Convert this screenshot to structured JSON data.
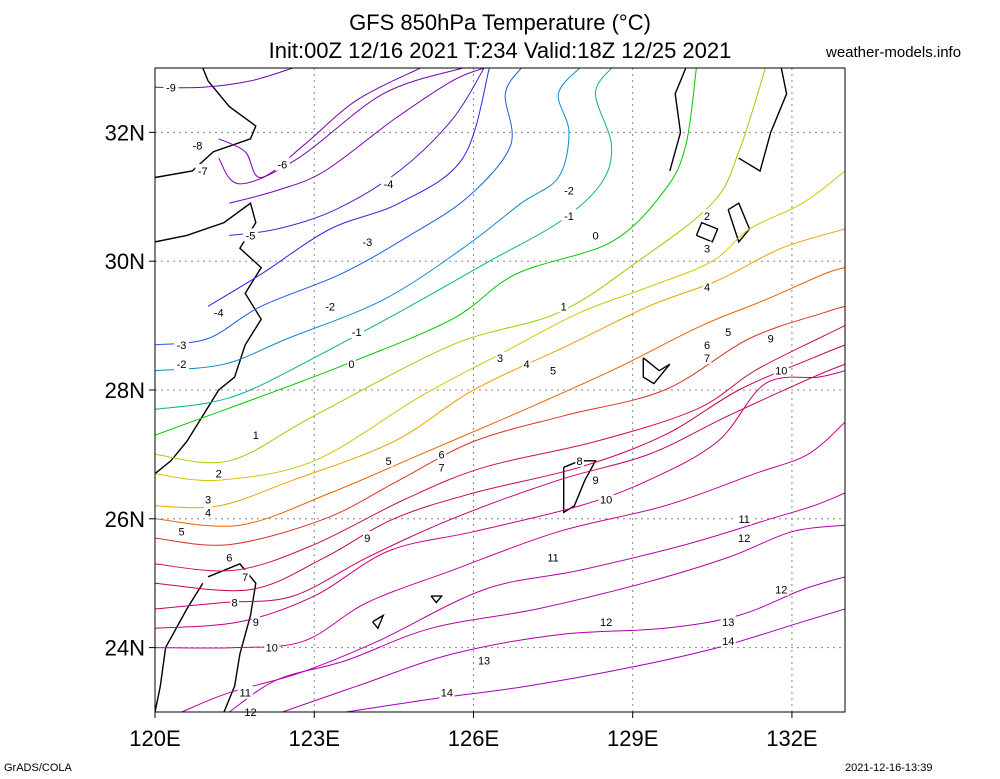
{
  "title_line1": "GFS 850hPa Temperature (°C)",
  "title_line2": "Init:00Z 12/16 2021 T:234 Valid:18Z 12/25 2021",
  "brand": "weather-models.info",
  "footer_left": "GrADS/COLA",
  "footer_right": "2021-12-16-13:39",
  "chart_data": {
    "type": "contour",
    "variable": "850hPa Temperature",
    "unit": "°C",
    "xlim": [
      120,
      133
    ],
    "ylim": [
      23,
      33
    ],
    "x_ticks": [
      120,
      123,
      126,
      129,
      132
    ],
    "x_tick_labels": [
      "120E",
      "123E",
      "126E",
      "129E",
      "132E"
    ],
    "y_ticks": [
      24,
      26,
      28,
      30,
      32
    ],
    "y_tick_labels": [
      "24N",
      "26N",
      "28N",
      "30N",
      "32N"
    ],
    "grid": true,
    "contour_interval": 1,
    "colors": {
      "-9": "#7a00b4",
      "-8": "#7a00b4",
      "-7": "#7a00b4",
      "-6": "#7a00b4",
      "-5": "#5a1ec8",
      "-4": "#2828e6",
      "-3": "#1e5ae6",
      "-2": "#0a8cd2",
      "-1": "#00b48c",
      "0": "#00c800",
      "1": "#96d200",
      "2": "#d2c800",
      "3": "#f0a000",
      "4": "#e66400",
      "5": "#dc3228",
      "6": "#d2143c",
      "7": "#c8005a",
      "8": "#c8006e",
      "9": "#c80082",
      "10": "#c80096",
      "11": "#be00a0",
      "12": "#b400aa",
      "13": "#aa00b4",
      "14": "#a000be"
    },
    "contours": [
      {
        "value": -9,
        "points": [
          [
            120.0,
            32.7
          ],
          [
            120.9,
            32.7
          ],
          [
            121.8,
            32.8
          ],
          [
            122.6,
            33.0
          ]
        ],
        "labels": [
          [
            120.3,
            32.7
          ]
        ]
      },
      {
        "value": -8,
        "points": [
          [
            121.2,
            31.9
          ],
          [
            121.7,
            31.7
          ],
          [
            122.0,
            31.3
          ],
          [
            122.8,
            31.8
          ],
          [
            123.8,
            32.5
          ],
          [
            125.0,
            33.0
          ]
        ],
        "labels": [
          [
            120.8,
            31.8
          ]
        ]
      },
      {
        "value": -7,
        "points": [
          [
            121.2,
            31.6
          ],
          [
            121.6,
            31.2
          ],
          [
            122.7,
            31.6
          ],
          [
            124.3,
            32.6
          ],
          [
            125.8,
            33.0
          ]
        ],
        "labels": [
          [
            120.9,
            31.4
          ]
        ]
      },
      {
        "value": -6,
        "points": [
          [
            121.4,
            30.9
          ],
          [
            122.3,
            31.1
          ],
          [
            123.2,
            31.4
          ],
          [
            124.5,
            32.2
          ],
          [
            125.6,
            32.8
          ],
          [
            126.2,
            33.0
          ]
        ],
        "labels": [
          [
            122.4,
            31.5
          ]
        ]
      },
      {
        "value": -5,
        "points": [
          [
            121.4,
            30.4
          ],
          [
            122.3,
            30.5
          ],
          [
            123.4,
            30.8
          ],
          [
            124.6,
            31.4
          ],
          [
            125.6,
            32.2
          ],
          [
            126.2,
            33.0
          ]
        ],
        "labels": [
          [
            121.8,
            30.4
          ]
        ]
      },
      {
        "value": -4,
        "points": [
          [
            121.0,
            29.3
          ],
          [
            122.0,
            29.8
          ],
          [
            123.3,
            30.5
          ],
          [
            124.6,
            30.9
          ],
          [
            125.8,
            31.6
          ],
          [
            126.3,
            33.0
          ]
        ],
        "labels": [
          [
            121.2,
            29.2
          ],
          [
            124.4,
            31.2
          ]
        ]
      },
      {
        "value": -3,
        "points": [
          [
            120.0,
            28.7
          ],
          [
            121.0,
            28.8
          ],
          [
            122.0,
            29.3
          ],
          [
            123.5,
            29.8
          ],
          [
            124.8,
            30.4
          ],
          [
            125.9,
            31.0
          ],
          [
            126.7,
            31.8
          ],
          [
            126.6,
            32.6
          ],
          [
            126.9,
            33.0
          ]
        ],
        "labels": [
          [
            120.5,
            28.7
          ],
          [
            124.0,
            30.3
          ]
        ]
      },
      {
        "value": -2,
        "points": [
          [
            120.0,
            28.3
          ],
          [
            121.3,
            28.4
          ],
          [
            122.5,
            28.8
          ],
          [
            124.3,
            29.4
          ],
          [
            125.8,
            30.2
          ],
          [
            126.9,
            30.9
          ],
          [
            127.6,
            31.3
          ],
          [
            127.8,
            32.0
          ],
          [
            127.6,
            32.6
          ],
          [
            128.0,
            33.0
          ]
        ],
        "labels": [
          [
            120.5,
            28.4
          ],
          [
            123.3,
            29.3
          ],
          [
            127.8,
            31.1
          ]
        ]
      },
      {
        "value": -1,
        "points": [
          [
            120.0,
            27.7
          ],
          [
            121.0,
            27.8
          ],
          [
            121.8,
            28.0
          ],
          [
            123.0,
            28.5
          ],
          [
            124.8,
            29.3
          ],
          [
            126.3,
            30.0
          ],
          [
            127.6,
            30.6
          ],
          [
            128.4,
            31.2
          ],
          [
            128.6,
            31.8
          ],
          [
            128.3,
            32.6
          ],
          [
            128.6,
            33.0
          ]
        ],
        "labels": [
          [
            123.8,
            28.9
          ],
          [
            127.8,
            30.7
          ]
        ]
      },
      {
        "value": 0,
        "points": [
          [
            120.0,
            27.3
          ],
          [
            121.0,
            27.6
          ],
          [
            122.0,
            27.9
          ],
          [
            123.6,
            28.4
          ],
          [
            125.6,
            29.1
          ],
          [
            126.8,
            29.8
          ],
          [
            128.6,
            30.3
          ],
          [
            129.6,
            31.1
          ],
          [
            130.0,
            31.8
          ],
          [
            130.2,
            33.0
          ]
        ],
        "labels": [
          [
            123.7,
            28.4
          ],
          [
            128.3,
            30.4
          ]
        ]
      },
      {
        "value": 1,
        "points": [
          [
            120.0,
            27.0
          ],
          [
            121.4,
            26.9
          ],
          [
            123.0,
            27.6
          ],
          [
            125.6,
            28.7
          ],
          [
            127.6,
            29.2
          ],
          [
            129.1,
            30.0
          ],
          [
            130.5,
            30.9
          ],
          [
            131.0,
            31.7
          ],
          [
            131.5,
            33.0
          ]
        ],
        "labels": [
          [
            121.9,
            27.3
          ],
          [
            127.7,
            29.3
          ]
        ]
      },
      {
        "value": 2,
        "points": [
          [
            120.0,
            26.7
          ],
          [
            121.2,
            26.6
          ],
          [
            123.0,
            26.9
          ],
          [
            125.0,
            27.9
          ],
          [
            126.6,
            28.6
          ],
          [
            128.0,
            29.2
          ],
          [
            129.3,
            29.6
          ],
          [
            130.5,
            30.0
          ],
          [
            131.2,
            30.5
          ],
          [
            132.2,
            30.9
          ],
          [
            133.0,
            31.4
          ]
        ],
        "labels": [
          [
            121.2,
            26.7
          ],
          [
            130.4,
            30.7
          ]
        ]
      },
      {
        "value": 3,
        "points": [
          [
            120.0,
            26.2
          ],
          [
            121.2,
            26.2
          ],
          [
            122.6,
            26.6
          ],
          [
            124.5,
            27.2
          ],
          [
            126.0,
            28.0
          ],
          [
            127.8,
            28.7
          ],
          [
            129.3,
            29.3
          ],
          [
            130.6,
            29.7
          ],
          [
            131.8,
            30.2
          ],
          [
            133.0,
            30.5
          ]
        ],
        "labels": [
          [
            121.0,
            26.3
          ],
          [
            126.5,
            28.5
          ],
          [
            130.4,
            30.2
          ]
        ]
      },
      {
        "value": 4,
        "points": [
          [
            120.0,
            26.0
          ],
          [
            121.6,
            25.9
          ],
          [
            123.3,
            26.4
          ],
          [
            125.0,
            27.0
          ],
          [
            126.7,
            27.6
          ],
          [
            128.6,
            28.3
          ],
          [
            130.3,
            29.0
          ],
          [
            131.5,
            29.4
          ],
          [
            132.6,
            29.8
          ],
          [
            133.0,
            29.9
          ]
        ],
        "labels": [
          [
            121.0,
            26.1
          ],
          [
            127.0,
            28.4
          ],
          [
            130.4,
            29.6
          ]
        ]
      },
      {
        "value": 5,
        "points": [
          [
            120.0,
            25.7
          ],
          [
            121.4,
            25.6
          ],
          [
            123.2,
            26.0
          ],
          [
            124.6,
            26.6
          ],
          [
            126.0,
            27.2
          ],
          [
            127.7,
            27.6
          ],
          [
            129.6,
            28.0
          ],
          [
            131.2,
            28.8
          ],
          [
            132.6,
            29.2
          ],
          [
            133.0,
            29.3
          ]
        ],
        "labels": [
          [
            120.5,
            25.8
          ],
          [
            124.4,
            26.9
          ],
          [
            127.5,
            28.3
          ],
          [
            130.8,
            28.9
          ]
        ]
      },
      {
        "value": 6,
        "points": [
          [
            120.0,
            25.3
          ],
          [
            121.5,
            25.2
          ],
          [
            123.0,
            25.6
          ],
          [
            124.7,
            26.3
          ],
          [
            126.2,
            26.8
          ],
          [
            128.3,
            27.2
          ],
          [
            130.2,
            27.7
          ],
          [
            131.3,
            28.3
          ],
          [
            132.5,
            28.8
          ],
          [
            133.0,
            29.0
          ]
        ],
        "labels": [
          [
            121.4,
            25.4
          ],
          [
            125.4,
            27.0
          ],
          [
            130.4,
            28.7
          ]
        ]
      },
      {
        "value": 7,
        "points": [
          [
            120.0,
            25.0
          ],
          [
            121.8,
            24.9
          ],
          [
            123.2,
            25.4
          ],
          [
            124.5,
            26.0
          ],
          [
            126.0,
            26.4
          ],
          [
            128.0,
            26.8
          ],
          [
            129.6,
            27.3
          ],
          [
            131.0,
            28.0
          ],
          [
            132.4,
            28.5
          ],
          [
            133.0,
            28.7
          ]
        ],
        "labels": [
          [
            121.7,
            25.1
          ],
          [
            125.4,
            26.8
          ],
          [
            130.4,
            28.5
          ]
        ]
      },
      {
        "value": 8,
        "points": [
          [
            120.0,
            24.6
          ],
          [
            121.3,
            24.7
          ],
          [
            122.6,
            24.8
          ],
          [
            124.0,
            25.4
          ],
          [
            125.6,
            26.0
          ],
          [
            127.6,
            26.6
          ],
          [
            129.3,
            27.0
          ],
          [
            130.8,
            27.6
          ],
          [
            132.4,
            28.2
          ],
          [
            133.0,
            28.4
          ]
        ],
        "labels": [
          [
            121.5,
            24.7
          ],
          [
            128.0,
            26.9
          ]
        ]
      },
      {
        "value": 9,
        "points": [
          [
            120.0,
            24.3
          ],
          [
            121.6,
            24.4
          ],
          [
            123.0,
            24.8
          ],
          [
            124.4,
            25.5
          ],
          [
            126.0,
            25.8
          ],
          [
            128.0,
            26.2
          ],
          [
            129.3,
            26.6
          ],
          [
            130.6,
            27.2
          ],
          [
            131.5,
            28.1
          ],
          [
            132.5,
            28.2
          ],
          [
            133.0,
            28.3
          ]
        ],
        "labels": [
          [
            121.9,
            24.4
          ],
          [
            124.0,
            25.7
          ],
          [
            128.3,
            26.6
          ],
          [
            131.6,
            28.8
          ]
        ]
      },
      {
        "value": 10,
        "points": [
          [
            120.0,
            24.0
          ],
          [
            121.5,
            24.0
          ],
          [
            122.8,
            24.1
          ],
          [
            124.0,
            24.7
          ],
          [
            125.6,
            25.2
          ],
          [
            127.6,
            25.8
          ],
          [
            129.6,
            26.2
          ],
          [
            131.3,
            26.7
          ],
          [
            132.3,
            27.0
          ],
          [
            133.0,
            27.5
          ]
        ],
        "labels": [
          [
            122.2,
            24.0
          ],
          [
            128.5,
            26.3
          ],
          [
            131.8,
            28.3
          ]
        ]
      },
      {
        "value": 11,
        "points": [
          [
            120.5,
            23.0
          ],
          [
            121.4,
            23.3
          ],
          [
            122.7,
            23.6
          ],
          [
            124.2,
            24.1
          ],
          [
            126.2,
            24.9
          ],
          [
            128.0,
            25.2
          ],
          [
            130.0,
            25.6
          ],
          [
            131.6,
            26.0
          ],
          [
            132.4,
            26.2
          ],
          [
            133.0,
            26.4
          ]
        ],
        "labels": [
          [
            121.7,
            23.3
          ],
          [
            127.5,
            25.4
          ],
          [
            131.1,
            26.0
          ]
        ]
      },
      {
        "value": 12,
        "points": [
          [
            121.4,
            23.0
          ],
          [
            122.3,
            23.5
          ],
          [
            123.6,
            23.8
          ],
          [
            125.2,
            24.3
          ],
          [
            127.2,
            24.6
          ],
          [
            129.2,
            25.0
          ],
          [
            130.8,
            25.4
          ],
          [
            132.0,
            25.8
          ],
          [
            133.0,
            25.9
          ]
        ],
        "labels": [
          [
            121.8,
            23.0
          ],
          [
            128.5,
            24.4
          ],
          [
            131.1,
            25.7
          ],
          [
            131.8,
            24.9
          ]
        ]
      },
      {
        "value": 13,
        "points": [
          [
            122.4,
            23.0
          ],
          [
            123.8,
            23.4
          ],
          [
            125.6,
            23.9
          ],
          [
            127.6,
            24.2
          ],
          [
            129.6,
            24.3
          ],
          [
            131.0,
            24.5
          ],
          [
            132.2,
            24.9
          ],
          [
            133.0,
            25.1
          ]
        ],
        "labels": [
          [
            126.2,
            23.8
          ],
          [
            130.8,
            24.4
          ]
        ]
      },
      {
        "value": 14,
        "points": [
          [
            123.6,
            23.0
          ],
          [
            125.2,
            23.2
          ],
          [
            127.0,
            23.4
          ],
          [
            129.0,
            23.7
          ],
          [
            130.6,
            24.0
          ],
          [
            132.2,
            24.4
          ],
          [
            133.0,
            24.6
          ]
        ],
        "labels": [
          [
            125.5,
            23.3
          ],
          [
            130.8,
            24.1
          ]
        ]
      }
    ]
  }
}
